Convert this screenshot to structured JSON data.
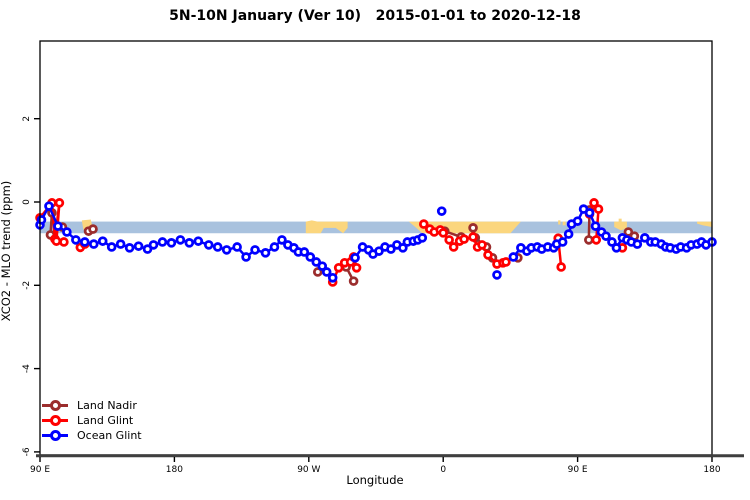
{
  "chart_data": {
    "type": "line",
    "title": "5N-10N January (Ver 10)   2015-01-01 to 2020-12-18",
    "xlabel": "Longitude",
    "ylabel": "XCO2 - MLO trend (ppm)",
    "x_axis": {
      "note": "longitude axis wraps eastward over 450 degrees starting at 90E",
      "tick_positions_deg_from_left": [
        0,
        90,
        180,
        270,
        360,
        450
      ],
      "tick_labels": [
        "90 E",
        "180",
        "90 W",
        "0",
        "90 E",
        "180"
      ],
      "xlim_deg_from_left": [
        0,
        450
      ]
    },
    "y_axis": {
      "ticks": [
        2,
        0,
        -2,
        -4,
        -6
      ],
      "ylim": [
        -6.1,
        3.9
      ]
    },
    "reference_band": {
      "meaning": "horizontal band across all longitudes",
      "value_top": -0.47,
      "value_bottom": -0.75,
      "ocean_color": "#A9C2DE",
      "land_color": "#FBD67E"
    },
    "land_patches": [
      {
        "name": "philippines-borneo",
        "polygon": [
          [
            28,
            -0.44
          ],
          [
            34,
            -0.42
          ],
          [
            35,
            -0.58
          ],
          [
            33,
            -0.7
          ],
          [
            29,
            -0.66
          ]
        ]
      },
      {
        "name": "central-america",
        "polygon": [
          [
            178,
            -0.47
          ],
          [
            182,
            -0.44
          ],
          [
            186,
            -0.47
          ],
          [
            206,
            -0.47
          ],
          [
            206,
            -0.62
          ],
          [
            203,
            -0.75
          ],
          [
            198,
            -0.62
          ],
          [
            190,
            -0.62
          ],
          [
            188,
            -0.75
          ],
          [
            178,
            -0.75
          ]
        ]
      },
      {
        "name": "africa",
        "polygon": [
          [
            247,
            -0.47
          ],
          [
            322,
            -0.47
          ],
          [
            315,
            -0.75
          ],
          [
            256,
            -0.75
          ],
          [
            252,
            -0.62
          ]
        ]
      },
      {
        "name": "india-speck-1",
        "polygon": [
          [
            347,
            -0.44
          ],
          [
            348.5,
            -0.44
          ],
          [
            348.5,
            -0.54
          ],
          [
            347,
            -0.54
          ]
        ]
      },
      {
        "name": "india-speck-2",
        "polygon": [
          [
            350,
            -0.47
          ],
          [
            352,
            -0.47
          ],
          [
            352,
            -0.56
          ],
          [
            350,
            -0.56
          ]
        ]
      },
      {
        "name": "philippines-repeat",
        "polygon": [
          [
            384.5,
            -0.47
          ],
          [
            393,
            -0.47
          ],
          [
            393,
            -0.63
          ],
          [
            389,
            -0.68
          ],
          [
            384.5,
            -0.6
          ]
        ]
      },
      {
        "name": "philippines-repeat-speck",
        "polygon": [
          [
            387.5,
            -0.4
          ],
          [
            389.5,
            -0.4
          ],
          [
            389.5,
            -0.47
          ],
          [
            387.5,
            -0.47
          ]
        ]
      },
      {
        "name": "right-edge-islands",
        "polygon": [
          [
            440,
            -0.47
          ],
          [
            450,
            -0.47
          ],
          [
            450,
            -0.6
          ],
          [
            444,
            -0.56
          ],
          [
            440,
            -0.52
          ]
        ]
      }
    ],
    "series": [
      {
        "name": "Land Nadir",
        "color": "#9B2D2D",
        "segments": [
          [
            [
              8,
              -0.26
            ],
            [
              7,
              -0.79
            ]
          ],
          [
            [
              15,
              -0.6
            ]
          ],
          [
            [
              32.5,
              -0.7
            ],
            [
              35.5,
              -0.65
            ]
          ],
          [
            [
              186,
              -1.68
            ]
          ],
          [
            [
              205,
              -1.56
            ],
            [
              210,
              -1.9
            ]
          ],
          [
            [
              271,
              -0.7
            ],
            [
              282,
              -0.84
            ]
          ],
          [
            [
              290,
              -0.62
            ],
            [
              291.5,
              -0.86
            ],
            [
              299,
              -1.08
            ],
            [
              303,
              -1.34
            ]
          ],
          [
            [
              320,
              -1.34
            ]
          ],
          [
            [
              368,
              -0.19
            ],
            [
              367.5,
              -0.91
            ]
          ],
          [
            [
              394,
              -0.72
            ],
            [
              398,
              -0.82
            ]
          ]
        ]
      },
      {
        "name": "Land Glint",
        "color": "#FF0000",
        "segments": [
          [
            [
              0,
              -0.38
            ],
            [
              8,
              -0.02
            ],
            [
              10,
              -0.89
            ],
            [
              13,
              -0.02
            ],
            [
              11,
              -0.94
            ],
            [
              16,
              -0.96
            ]
          ],
          [
            [
              27,
              -1.09
            ],
            [
              30,
              -1.01
            ]
          ],
          [
            [
              196,
              -1.92
            ],
            [
              200,
              -1.58
            ],
            [
              204,
              -1.46
            ],
            [
              208,
              -1.44
            ],
            [
              210,
              -1.32
            ],
            [
              212,
              -1.58
            ]
          ],
          [
            [
              257,
              -0.53
            ],
            [
              261,
              -0.65
            ],
            [
              264,
              -0.72
            ],
            [
              268,
              -0.67
            ],
            [
              270,
              -0.74
            ],
            [
              274,
              -0.91
            ],
            [
              277,
              -1.08
            ],
            [
              281,
              -0.94
            ],
            [
              284,
              -0.89
            ],
            [
              290,
              -0.84
            ],
            [
              293,
              -1.08
            ],
            [
              296,
              -1.03
            ],
            [
              300,
              -1.27
            ],
            [
              306,
              -1.49
            ],
            [
              310,
              -1.46
            ],
            [
              312,
              -1.44
            ]
          ],
          [
            [
              347,
              -0.87
            ],
            [
              349,
              -1.56
            ]
          ],
          [
            [
              368,
              -0.29
            ],
            [
              371,
              -0.02
            ],
            [
              374,
              -0.17
            ],
            [
              372.5,
              -0.91
            ]
          ],
          [
            [
              390,
              -1.1
            ]
          ]
        ]
      },
      {
        "name": "Ocean Glint",
        "color": "#0000FF",
        "segments": [
          [
            [
              0,
              -0.55
            ],
            [
              1,
              -0.43
            ],
            [
              6,
              -0.1
            ],
            [
              12,
              -0.58
            ],
            [
              18,
              -0.72
            ],
            [
              24,
              -0.91
            ],
            [
              30,
              -0.96
            ],
            [
              36,
              -1.01
            ],
            [
              42,
              -0.94
            ],
            [
              48,
              -1.08
            ],
            [
              54,
              -1.01
            ],
            [
              60,
              -1.1
            ],
            [
              66,
              -1.06
            ],
            [
              72,
              -1.13
            ],
            [
              76,
              -1.03
            ],
            [
              82,
              -0.96
            ],
            [
              88,
              -0.98
            ],
            [
              94,
              -0.91
            ],
            [
              100,
              -0.98
            ],
            [
              106,
              -0.94
            ],
            [
              113,
              -1.03
            ],
            [
              119,
              -1.08
            ],
            [
              125,
              -1.15
            ],
            [
              132,
              -1.08
            ],
            [
              138,
              -1.32
            ],
            [
              144,
              -1.15
            ],
            [
              151,
              -1.22
            ],
            [
              157,
              -1.08
            ],
            [
              162,
              -0.91
            ],
            [
              166,
              -1.03
            ],
            [
              170,
              -1.1
            ],
            [
              173,
              -1.2
            ],
            [
              177,
              -1.2
            ],
            [
              181,
              -1.32
            ],
            [
              185,
              -1.44
            ],
            [
              189,
              -1.54
            ],
            [
              192,
              -1.68
            ],
            [
              196,
              -1.82
            ]
          ],
          [
            [
              211,
              -1.34
            ],
            [
              216,
              -1.08
            ],
            [
              220,
              -1.15
            ],
            [
              223,
              -1.25
            ],
            [
              227,
              -1.18
            ],
            [
              231,
              -1.08
            ],
            [
              235,
              -1.13
            ],
            [
              239,
              -1.03
            ],
            [
              243,
              -1.1
            ],
            [
              246,
              -0.96
            ],
            [
              250,
              -0.94
            ],
            [
              253,
              -0.91
            ],
            [
              256,
              -0.86
            ]
          ],
          [
            [
              269,
              -0.22
            ]
          ],
          [
            [
              306,
              -1.75
            ]
          ],
          [
            [
              317,
              -1.32
            ],
            [
              322,
              -1.1
            ],
            [
              326,
              -1.18
            ],
            [
              329,
              -1.1
            ],
            [
              333,
              -1.08
            ],
            [
              336,
              -1.13
            ],
            [
              340,
              -1.08
            ],
            [
              344,
              -1.1
            ],
            [
              346,
              -1.01
            ],
            [
              350,
              -0.96
            ],
            [
              354,
              -0.77
            ],
            [
              356,
              -0.53
            ],
            [
              360,
              -0.46
            ],
            [
              364,
              -0.17
            ],
            [
              368,
              -0.26
            ],
            [
              372,
              -0.58
            ],
            [
              376,
              -0.72
            ],
            [
              379,
              -0.82
            ],
            [
              383,
              -0.96
            ],
            [
              386,
              -1.1
            ],
            [
              390,
              -0.86
            ],
            [
              393,
              -0.91
            ],
            [
              396,
              -0.96
            ],
            [
              400,
              -1.01
            ],
            [
              405,
              -0.86
            ],
            [
              409,
              -0.96
            ],
            [
              412,
              -0.96
            ],
            [
              416,
              -1.01
            ],
            [
              419,
              -1.08
            ],
            [
              422,
              -1.1
            ],
            [
              426,
              -1.13
            ],
            [
              429,
              -1.08
            ],
            [
              433,
              -1.1
            ],
            [
              436,
              -1.03
            ],
            [
              440,
              -1.01
            ],
            [
              443,
              -0.96
            ],
            [
              446,
              -1.03
            ],
            [
              450,
              -0.96
            ]
          ]
        ]
      }
    ],
    "legend_position": "bottom-left-inside"
  }
}
